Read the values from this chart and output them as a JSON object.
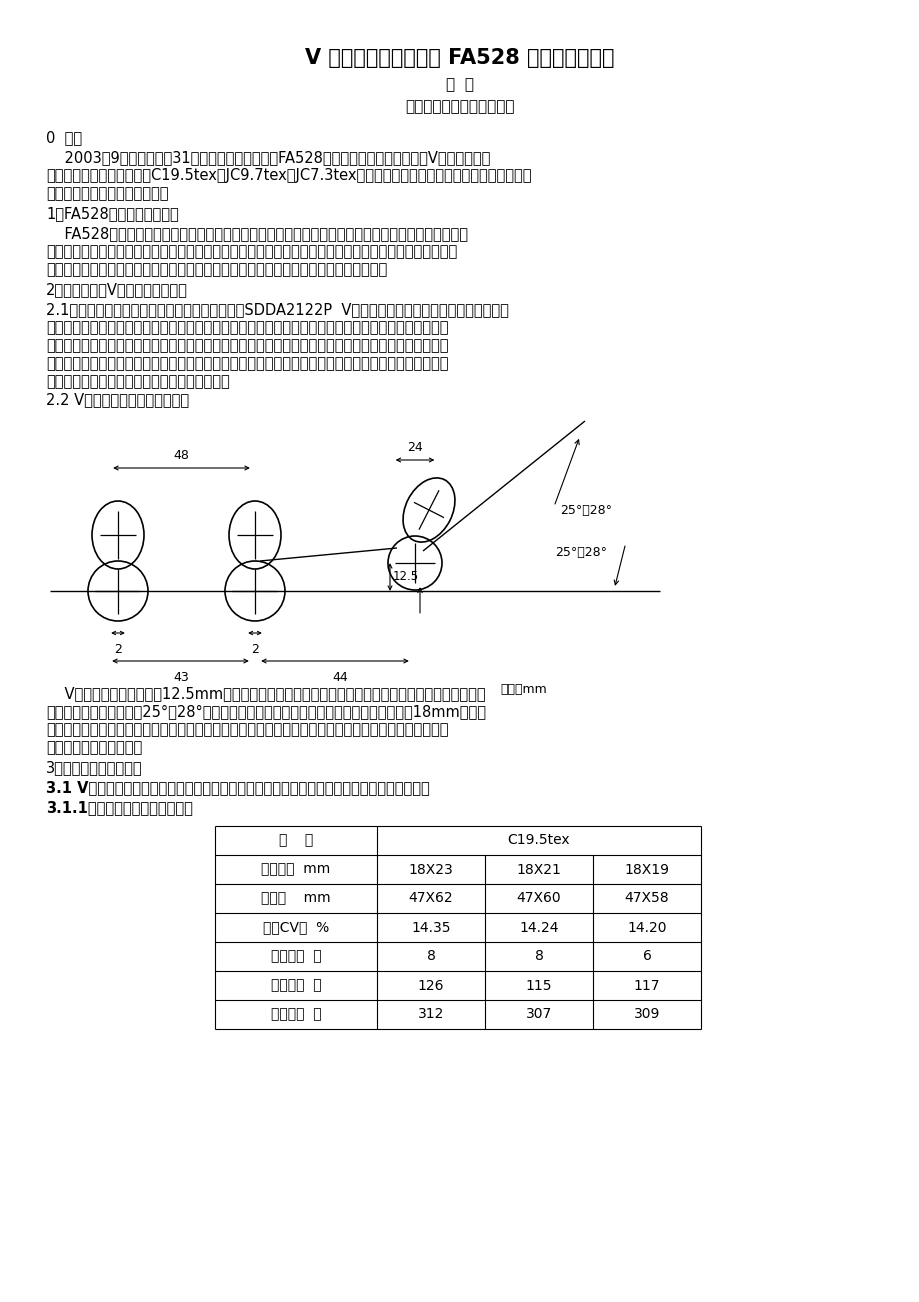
{
  "title": "V 型牵伸、气动加压在 FA528 细纱机上的使用",
  "author": "金  波",
  "company": "陕西八方纺织有限责任公司",
  "bg_color": "#ffffff",
  "section0": "0  前言",
  "para1a": "    2003年9月我厂新装了31台经纬合力公司生产的FA528细纱机，并采用气动加压、V型牵伸。使用",
  "para1b": "以来工作稳定，先后生产了C19.5tex、JC9.7tex、JC7.3tex品种，均能满足生产要求。现将工艺、质量、",
  "para1c": "设备维护方面的情况作以介绍。",
  "section1": "1．FA528细纱机的主要特点",
  "para2a": "    FA528细纱机车头齿轮传动全在有透明观察窗的油箱内，采用油浴润滑，润滑作用可靠。电机与主轴",
  "para2b": "间使用平皮带传动，更换方便。车尾有触摸屏作为人机界面，可设定落纱长度，并能显示牵伸倍数、捻度、",
  "para2c": "锭速、前罗拉转速、产量及电气故障等。罗拉选用同和牌无机械波罗拉，保证质量稳定。",
  "section2": "2．气动加压、V型牵伸的主要特点",
  "para3a": "2.1气动加压选用山东轻骑集团日照摩托车公司的SDDA2122P  V型牵伸气动加压摇架，该摇架采用压缩空",
  "para3b": "气为动力源，压缩空气经降压后输至细纱机两侧摇架空心支轴内的长气囊，气囊膨胀顶住压力板，经联接",
  "para3c": "杆杆传递对罗拉加压。压力调节方便，调节气囊压力，可对整台车摇架进行无级调压。当气囊压力为定值",
  "para3d": "时，改变摇架上的变换销位置，可调节三个上罗拉间的压力分配。气动加压属软弹性加压，吸震性强适合",
  "para3e": "高速，它克服了弹簧易衰退的缺陷，压力稳定。",
  "section22": "2.2 V型牵伸的结构特点（图一）",
  "para4a": "    V型牵伸后罗拉中心抬高12.5mm，后皮辊沿后下罗拉上表面向后偏移，使后皮辊和后罗拉中心连线与",
  "para4b": "前中后下罗拉水平连线成25°－28°夹角，从而使后区形成一个曲线牵伸区。纺纱时大约有18mm的粗纱",
  "para4c": "贴在后罗拉上表面，后罗拉表面对纱条附加的摩擦力使后区牵伸过程中对浮游纤维的控制作用加强，有利",
  "para4d": "于提高纱线条干均匀度。",
  "section3": "3．纺纱工艺与成纱质量",
  "para5": "3.1 V型牵伸后区为曲线牵伸，工艺不同于普通牵伸，需对罗拉隔距和后区牵伸进行优选试验。",
  "para6": "3.1.1罗拉隔距对比试验（表一）",
  "unit_label": "单位：mm",
  "dim_48": "48",
  "dim_24": "24",
  "dim_12_5": "12.5",
  "dim_2": "2",
  "dim_43": "43",
  "dim_44": "44",
  "angle1": "25°－28°",
  "angle2": "25°～28°",
  "table_data": [
    [
      "品    种",
      "C19.5tex",
      "",
      ""
    ],
    [
      "罗拉隔距  mm",
      "18X23",
      "18X21",
      "18X19"
    ],
    [
      "握持距    mm",
      "47X62",
      "47X60",
      "47X58"
    ],
    [
      "条干CV值  %",
      "14.35",
      "14.24",
      "14.20"
    ],
    [
      "千米细节  个",
      "8",
      "8",
      "6"
    ],
    [
      "千米粗节  个",
      "126",
      "115",
      "117"
    ],
    [
      "千米棉结  个",
      "312",
      "307",
      "309"
    ]
  ]
}
